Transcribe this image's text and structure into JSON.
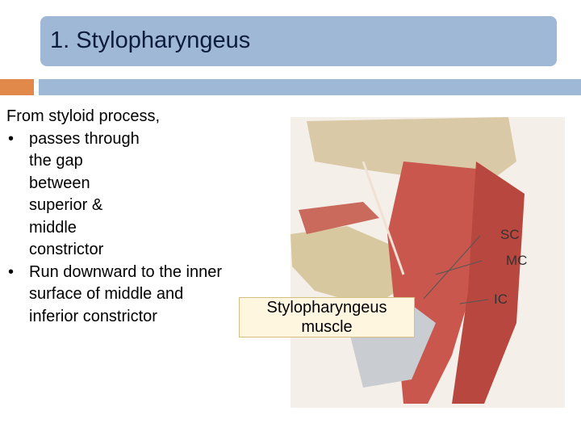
{
  "slide": {
    "title": "1. Stylopharyngeus",
    "body": {
      "intro": "From styloid process,",
      "bullets": [
        {
          "lines": [
            "passes through",
            "the gap",
            "between",
            "superior &",
            "middle",
            "constrictor"
          ]
        },
        {
          "lines": [
            "Run downward to the inner",
            "surface of middle and",
            "inferior constrictor"
          ]
        }
      ]
    },
    "figure": {
      "labels": [
        "SC",
        "MC",
        "IC"
      ],
      "callout": [
        "Stylopharyngeus",
        "muscle"
      ]
    }
  }
}
